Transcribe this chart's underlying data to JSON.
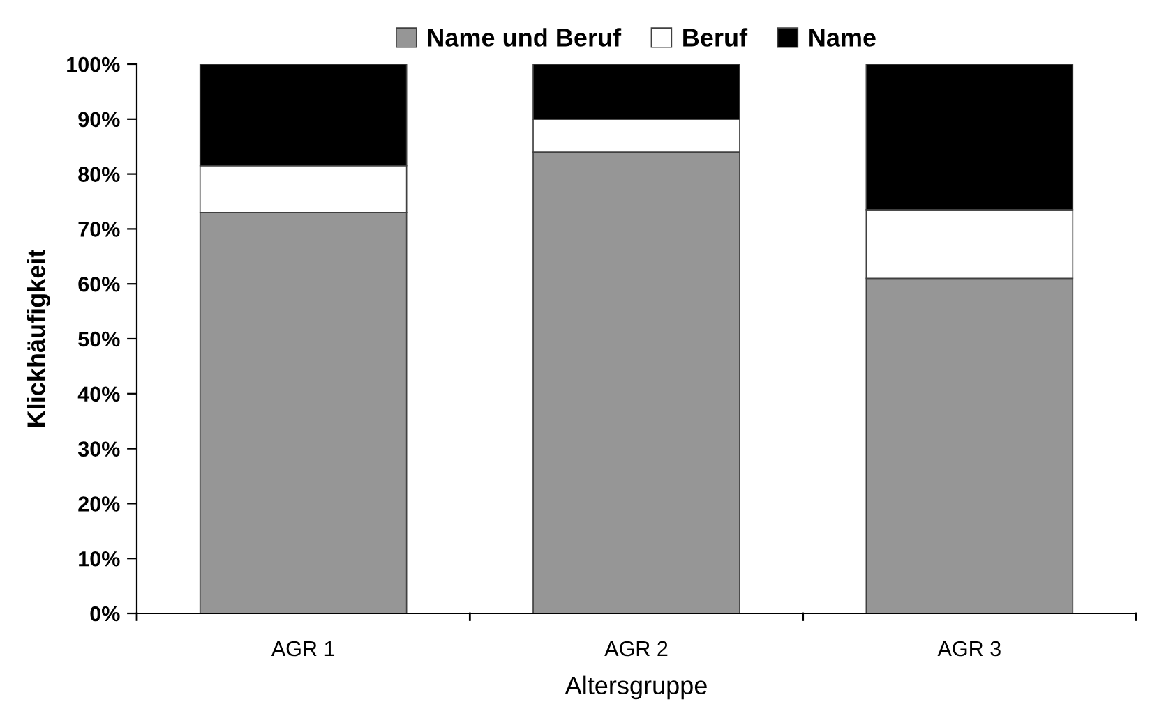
{
  "chart_data": {
    "type": "bar",
    "stacked": true,
    "xlabel": "Altersgruppe",
    "ylabel": "Klickhäufigkeit",
    "categories": [
      "AGR 1",
      "AGR 2",
      "AGR 3"
    ],
    "series": [
      {
        "name": "Name und Beruf",
        "color": "#969696",
        "values": [
          73,
          84,
          61
        ]
      },
      {
        "name": "Beruf",
        "color": "#ffffff",
        "values": [
          8.5,
          6,
          12.5
        ]
      },
      {
        "name": "Name",
        "color": "#000000",
        "values": [
          18.5,
          10,
          26.5
        ]
      }
    ],
    "ylim": [
      0,
      100
    ],
    "yticks": [
      {
        "value": 0,
        "label": "0%"
      },
      {
        "value": 10,
        "label": "10%"
      },
      {
        "value": 20,
        "label": "20%"
      },
      {
        "value": 30,
        "label": "30%"
      },
      {
        "value": 40,
        "label": "40%"
      },
      {
        "value": 50,
        "label": "50%"
      },
      {
        "value": 60,
        "label": "60%"
      },
      {
        "value": 70,
        "label": "70%"
      },
      {
        "value": 80,
        "label": "80%"
      },
      {
        "value": 90,
        "label": "90%"
      },
      {
        "value": 100,
        "label": "100%"
      }
    ],
    "grid": false,
    "legend": "top"
  }
}
